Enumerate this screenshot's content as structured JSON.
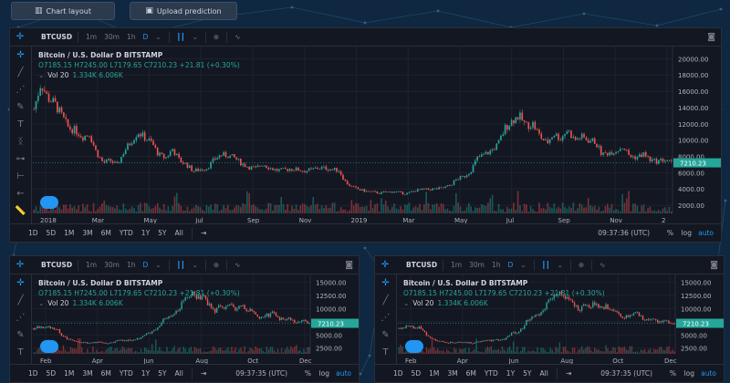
{
  "colors": {
    "background": "#0f2740",
    "panel": "#131722",
    "up": "#26a69a",
    "down": "#ef5350",
    "accent": "#2196f3"
  },
  "top_buttons": [
    {
      "icon": "chart-layout-icon",
      "label": "Chart layout"
    },
    {
      "icon": "upload-icon",
      "label": "Upload prediction"
    }
  ],
  "panels": [
    {
      "symbol": "BTCUSD",
      "resolutions": [
        "1m",
        "30m",
        "1h",
        "D"
      ],
      "active_resolution": "D",
      "legend": {
        "title": "Bitcoin / U.S. Dollar  D  BITSTAMP",
        "ohlc": "O7185.15  H7245.00  L7179.65  C7210.23  +21.81 (+0.30%)",
        "volume_label": "Vol 20",
        "volume_values": "1.334K  6.006K"
      },
      "price_tag": "7210.23",
      "y_ticks": [
        "20000.00",
        "18000.00",
        "16000.00",
        "14000.00",
        "12000.00",
        "10000.00",
        "8000.00",
        "6000.00",
        "4000.00",
        "2000.00"
      ],
      "x_ticks": [
        "2018",
        "Mar",
        "May",
        "Jul",
        "Sep",
        "Nov",
        "2019",
        "Mar",
        "May",
        "Jul",
        "Sep",
        "Nov",
        "2"
      ],
      "ranges": [
        "1D",
        "5D",
        "1M",
        "3M",
        "6M",
        "YTD",
        "1Y",
        "5Y",
        "All"
      ],
      "clock": "09:37:36 (UTC)",
      "percent": "%",
      "log": "log",
      "auto": "auto"
    },
    {
      "symbol": "BTCUSD",
      "resolutions": [
        "1m",
        "30m",
        "1h",
        "D"
      ],
      "active_resolution": "D",
      "legend": {
        "title": "Bitcoin / U.S. Dollar  D  BITSTAMP",
        "ohlc": "O7185.15  H7245.00  L7179.65  C7210.23  +21.81 (+0.30%)",
        "volume_label": "Vol 20",
        "volume_values": "1.334K  6.006K"
      },
      "price_tag": "7210.23",
      "y_ticks": [
        "15000.00",
        "12500.00",
        "10000.00",
        "7500.00",
        "5000.00",
        "2500.00"
      ],
      "x_ticks": [
        "Feb",
        "Apr",
        "Jun",
        "Aug",
        "Oct",
        "Dec"
      ],
      "ranges": [
        "1D",
        "5D",
        "1M",
        "3M",
        "6M",
        "YTD",
        "1Y",
        "5Y",
        "All"
      ],
      "clock": "09:37:35 (UTC)",
      "percent": "%",
      "log": "log",
      "auto": "auto"
    },
    {
      "symbol": "BTCUSD",
      "resolutions": [
        "1m",
        "30m",
        "1h",
        "D"
      ],
      "active_resolution": "D",
      "legend": {
        "title": "Bitcoin / U.S. Dollar  D  BITSTAMP",
        "ohlc": "O7185.15  H7245.00  L7179.65  C7210.23  +21.81 (+0.30%)",
        "volume_label": "Vol 20",
        "volume_values": "1.334K  6.006K"
      },
      "price_tag": "7210.23",
      "y_ticks": [
        "15000.00",
        "12500.00",
        "10000.00",
        "7500.00",
        "5000.00",
        "2500.00"
      ],
      "x_ticks": [
        "Feb",
        "Apr",
        "Jun",
        "Aug",
        "Oct",
        "Dec"
      ],
      "ranges": [
        "1D",
        "5D",
        "1M",
        "3M",
        "6M",
        "YTD",
        "1Y",
        "5Y",
        "All"
      ],
      "clock": "09:37:35 (UTC)",
      "percent": "%",
      "log": "log",
      "auto": "auto"
    }
  ],
  "series": {
    "name": "",
    "close_profile": [
      13800,
      17000,
      15200,
      14500,
      13000,
      11500,
      11200,
      10400,
      10800,
      8500,
      7200,
      7500,
      6900,
      8600,
      9800,
      11000,
      10300,
      9700,
      8200,
      7800,
      8900,
      7500,
      7000,
      6200,
      6400,
      6600,
      7600,
      8200,
      8100,
      7800,
      7100,
      6700,
      6500,
      7100,
      6600,
      6300,
      6300,
      6500,
      6400,
      6200,
      6350,
      6600,
      6550,
      6400,
      6300,
      4800,
      4200,
      3900,
      3700,
      3600,
      3500,
      3600,
      3700,
      3500,
      3450,
      3800,
      3900,
      3950,
      4000,
      4100,
      4400,
      5200,
      5500,
      6200,
      7800,
      8200,
      8700,
      9500,
      11500,
      12400,
      13000,
      11800,
      12000,
      10500,
      9600,
      10800,
      10200,
      11300,
      10000,
      10400,
      10000,
      9800,
      8200,
      8500,
      8700,
      9200,
      8000,
      7900,
      8300,
      7500,
      7400,
      7600,
      7200
    ],
    "panel_small_range": [
      1400,
      16500
    ]
  }
}
